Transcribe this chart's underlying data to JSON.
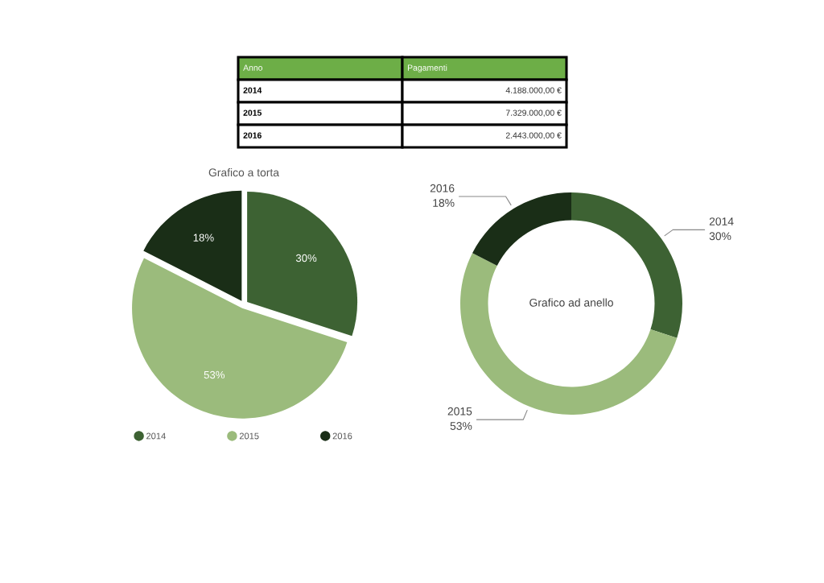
{
  "chart_data": [
    {
      "type": "other",
      "categories": [
        "Anno",
        "Pagamenti"
      ],
      "annotations": [
        "2014",
        "4.188.000,00 €",
        "2015",
        "7.329.000,00 €",
        "2016",
        "2.443.000,00 €"
      ],
      "color": "#6dae47"
    },
    {
      "type": "pie",
      "title": "Grafico a torta",
      "categories": [
        "2014",
        "2015",
        "2016"
      ],
      "values": [
        30,
        52.5,
        17.5
      ],
      "value_labels": [
        "30%",
        "53%",
        "18%"
      ],
      "colors": [
        "#3d6233",
        "#9bbb7c",
        "#1a2e17"
      ],
      "legend": "bottom"
    },
    {
      "type": "donut",
      "title": "Grafico ad anello",
      "categories": [
        "2014",
        "2015",
        "2016"
      ],
      "values": [
        30,
        52.5,
        17.5
      ],
      "value_labels": [
        "30%",
        "53%",
        "18%"
      ],
      "colors": [
        "#3d6233",
        "#9bbb7c",
        "#1a2e17"
      ]
    }
  ]
}
